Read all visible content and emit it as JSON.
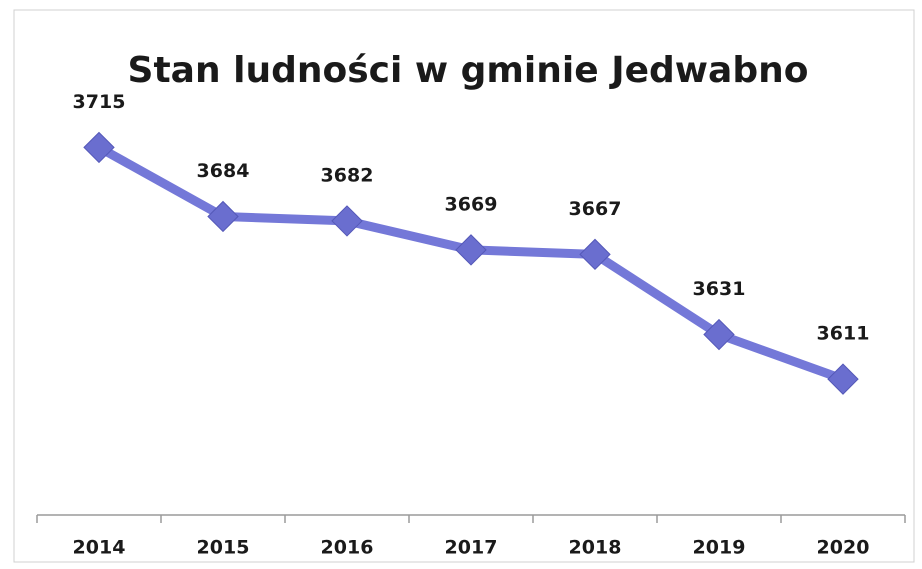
{
  "chart_data": {
    "type": "line",
    "title": "Stan ludności w gminie Jedwabno",
    "categories": [
      "2014",
      "2015",
      "2016",
      "2017",
      "2018",
      "2019",
      "2020"
    ],
    "values": [
      3715,
      3684,
      3682,
      3669,
      3667,
      3631,
      3611
    ],
    "color": "#7478d8",
    "marker_color": "#6a6ecf",
    "ylim": [
      3550,
      3730
    ]
  }
}
